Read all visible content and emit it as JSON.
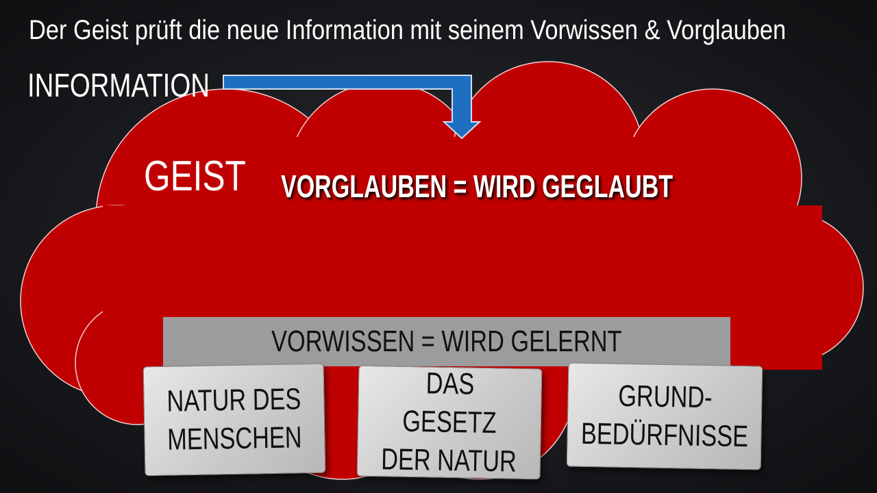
{
  "title": "Der Geist prüft die neue Information mit seinem Vorwissen & Vorglauben",
  "information": "INFORMATION",
  "geist": "GEIST",
  "vorglauben": "VORGLAUBEN = WIRD GEGLAUBT",
  "vorwissen": "VORWISSEN = WIRD GELERNT",
  "stones": [
    {
      "line1": "NATUR DES",
      "line2": "MENSCHEN"
    },
    {
      "line1": "DAS GESETZ",
      "line2": "DER NATUR"
    },
    {
      "line1": "GRUND-",
      "line2": "BEDÜRFNISSE"
    }
  ],
  "colors": {
    "cloud": "#c00000",
    "arrow": "#1f6fc1",
    "bar": "#9c9c9c"
  }
}
